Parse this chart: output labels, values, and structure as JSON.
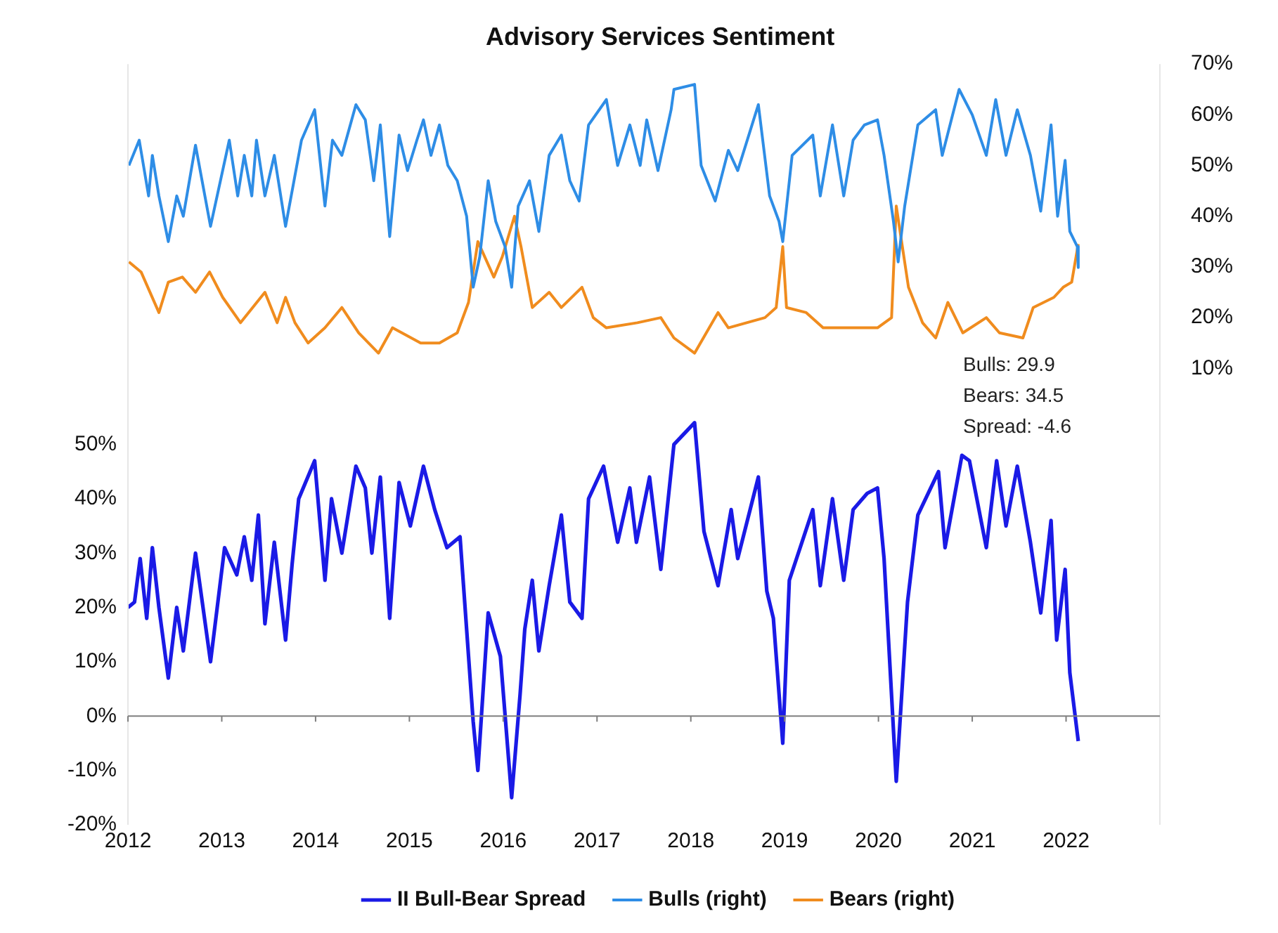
{
  "chart_data": {
    "type": "line",
    "title": "Advisory Services Sentiment",
    "xlim": [
      2012,
      2023
    ],
    "xticks": [
      2012,
      2013,
      2014,
      2015,
      2016,
      2017,
      2018,
      2019,
      2020,
      2021,
      2022
    ],
    "ylim": [
      -20,
      120
    ],
    "yticks": [
      {
        "value": -20,
        "label": "-20%"
      },
      {
        "value": -10,
        "label": "-10%"
      },
      {
        "value": 0,
        "label": "0%"
      },
      {
        "value": 10,
        "label": "10%"
      },
      {
        "value": 20,
        "label": "20%"
      },
      {
        "value": 30,
        "label": "30%"
      },
      {
        "value": 40,
        "label": "40%"
      },
      {
        "value": 50,
        "label": "50%"
      }
    ],
    "y2lim": [
      -80,
      70
    ],
    "y2ticks": [
      {
        "value": 10,
        "label": "10%"
      },
      {
        "value": 20,
        "label": "20%"
      },
      {
        "value": 30,
        "label": "30%"
      },
      {
        "value": 40,
        "label": "40%"
      },
      {
        "value": 50,
        "label": "50%"
      },
      {
        "value": 60,
        "label": "60%"
      },
      {
        "value": 70,
        "label": "70%"
      }
    ],
    "grid": false,
    "legend": "bottom",
    "line_style": "solid",
    "ref_lines": [
      {
        "axis": "y",
        "value": 0,
        "color": "#7f7f7f"
      }
    ],
    "annotations": [
      "Bulls: 29.9",
      "Bears: 34.5",
      "Spread: -4.6"
    ],
    "series": [
      {
        "name": "II Bull-Bear Spread",
        "color": "#1a1ae6",
        "x": [
          2012.0,
          2012.07,
          2012.13,
          2012.2,
          2012.26,
          2012.33,
          2012.43,
          2012.52,
          2012.59,
          2012.72,
          2012.88,
          2013.03,
          2013.16,
          2013.24,
          2013.32,
          2013.39,
          2013.46,
          2013.56,
          2013.68,
          2013.75,
          2013.82,
          2013.99,
          2014.1,
          2014.17,
          2014.28,
          2014.43,
          2014.53,
          2014.6,
          2014.69,
          2014.79,
          2014.89,
          2015.01,
          2015.15,
          2015.27,
          2015.4,
          2015.54,
          2015.68,
          2015.73,
          2015.84,
          2015.97,
          2016.09,
          2016.18,
          2016.23,
          2016.31,
          2016.38,
          2016.49,
          2016.62,
          2016.71,
          2016.84,
          2016.91,
          2017.07,
          2017.22,
          2017.35,
          2017.42,
          2017.56,
          2017.68,
          2017.82,
          2018.04,
          2018.14,
          2018.29,
          2018.43,
          2018.5,
          2018.72,
          2018.81,
          2018.88,
          2018.98,
          2019.05,
          2019.3,
          2019.38,
          2019.51,
          2019.63,
          2019.73,
          2019.88,
          2019.99,
          2020.06,
          2020.19,
          2020.31,
          2020.42,
          2020.64,
          2020.71,
          2020.89,
          2020.97,
          2021.15,
          2021.26,
          2021.36,
          2021.48,
          2021.62,
          2021.73,
          2021.84,
          2021.9,
          2021.99,
          2022.04,
          2022.13
        ],
        "values": [
          20,
          21,
          29,
          18,
          31,
          20,
          7,
          20,
          12,
          30,
          10,
          31,
          26,
          33,
          25,
          37,
          17,
          32,
          14,
          28,
          40,
          47,
          25,
          40,
          30,
          46,
          42,
          30,
          44,
          18,
          43,
          35,
          46,
          38,
          31,
          33,
          -1,
          -10,
          19,
          11,
          -15,
          4,
          16,
          25,
          12,
          24,
          37,
          21,
          18,
          40,
          46,
          32,
          42,
          32,
          44,
          27,
          50,
          54,
          34,
          24,
          38,
          29,
          44,
          23,
          18,
          -5,
          25,
          38,
          24,
          40,
          25,
          38,
          41,
          42,
          29,
          -12,
          21,
          37,
          45,
          31,
          48,
          47,
          31,
          47,
          35,
          46,
          32,
          19,
          36,
          14,
          27,
          8,
          -4.6
        ]
      },
      {
        "name": "Bulls (right)",
        "color": "#2e8de6",
        "axis": "y2",
        "x": [
          2012.01,
          2012.12,
          2012.22,
          2012.26,
          2012.33,
          2012.43,
          2012.52,
          2012.59,
          2012.72,
          2012.88,
          2013.08,
          2013.17,
          2013.24,
          2013.32,
          2013.37,
          2013.46,
          2013.56,
          2013.68,
          2013.73,
          2013.85,
          2013.99,
          2014.1,
          2014.18,
          2014.28,
          2014.43,
          2014.53,
          2014.62,
          2014.69,
          2014.79,
          2014.89,
          2014.98,
          2015.08,
          2015.15,
          2015.23,
          2015.32,
          2015.41,
          2015.51,
          2015.61,
          2015.68,
          2015.75,
          2015.84,
          2015.92,
          2016.02,
          2016.09,
          2016.16,
          2016.28,
          2016.38,
          2016.49,
          2016.62,
          2016.71,
          2016.81,
          2016.91,
          2017.1,
          2017.22,
          2017.35,
          2017.46,
          2017.53,
          2017.65,
          2017.79,
          2017.82,
          2018.04,
          2018.11,
          2018.26,
          2018.4,
          2018.5,
          2018.72,
          2018.84,
          2018.94,
          2018.98,
          2019.08,
          2019.3,
          2019.38,
          2019.51,
          2019.63,
          2019.73,
          2019.85,
          2019.99,
          2020.06,
          2020.16,
          2020.21,
          2020.28,
          2020.42,
          2020.61,
          2020.68,
          2020.86,
          2021.0,
          2021.15,
          2021.25,
          2021.36,
          2021.48,
          2021.62,
          2021.73,
          2021.84,
          2021.91,
          2021.99,
          2022.04,
          2022.12,
          2022.13
        ],
        "values": [
          50,
          55,
          44,
          52,
          44,
          35,
          44,
          40,
          54,
          38,
          55,
          44,
          52,
          44,
          55,
          44,
          52,
          38,
          43,
          55,
          61,
          42,
          55,
          52,
          62,
          59,
          47,
          58,
          36,
          56,
          49,
          55,
          59,
          52,
          58,
          50,
          47,
          40,
          26,
          32,
          47,
          39,
          34,
          26,
          42,
          47,
          37,
          52,
          56,
          47,
          43,
          58,
          63,
          50,
          58,
          50,
          59,
          49,
          61,
          65,
          66,
          50,
          43,
          53,
          49,
          62,
          44,
          39,
          35,
          52,
          56,
          44,
          58,
          44,
          55,
          58,
          59,
          52,
          39,
          31,
          42,
          58,
          61,
          52,
          65,
          60,
          52,
          63,
          52,
          61,
          52,
          41,
          58,
          40,
          51,
          37,
          34,
          29.9
        ]
      },
      {
        "name": "Bears (right)",
        "color": "#f08c1e",
        "axis": "y2",
        "x": [
          2012.01,
          2012.14,
          2012.33,
          2012.43,
          2012.58,
          2012.72,
          2012.87,
          2013.01,
          2013.2,
          2013.46,
          2013.59,
          2013.68,
          2013.78,
          2013.92,
          2014.1,
          2014.28,
          2014.46,
          2014.67,
          2014.82,
          2015.12,
          2015.32,
          2015.51,
          2015.63,
          2015.73,
          2015.9,
          2015.99,
          2016.12,
          2016.19,
          2016.31,
          2016.49,
          2016.62,
          2016.84,
          2016.96,
          2017.1,
          2017.43,
          2017.68,
          2017.82,
          2018.04,
          2018.29,
          2018.4,
          2018.79,
          2018.91,
          2018.98,
          2019.02,
          2019.23,
          2019.41,
          2019.7,
          2019.99,
          2020.14,
          2020.19,
          2020.32,
          2020.47,
          2020.61,
          2020.74,
          2020.9,
          2021.15,
          2021.29,
          2021.54,
          2021.65,
          2021.87,
          2021.97,
          2022.06,
          2022.13
        ],
        "values": [
          31,
          29,
          21,
          27,
          28,
          25,
          29,
          24,
          19,
          25,
          19,
          24,
          19,
          15,
          18,
          22,
          17,
          13,
          18,
          15,
          15,
          17,
          23,
          35,
          28,
          32,
          40,
          34,
          22,
          25,
          22,
          26,
          20,
          18,
          19,
          20,
          16,
          13,
          21,
          18,
          20,
          22,
          34,
          22,
          21,
          18,
          18,
          18,
          20,
          42,
          26,
          19,
          16,
          23,
          17,
          20,
          17,
          16,
          22,
          24,
          26,
          27,
          34.5
        ]
      }
    ]
  }
}
